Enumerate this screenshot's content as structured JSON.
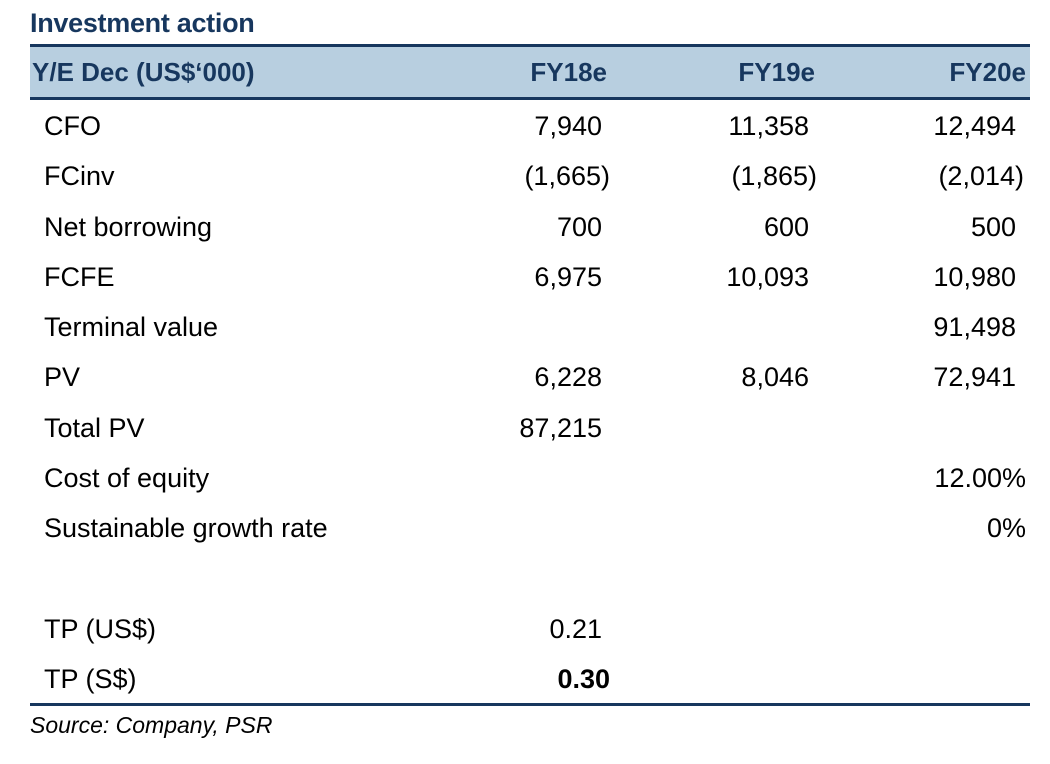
{
  "title": "Investment action",
  "header": {
    "label": "Y/E Dec (US$‘000)",
    "columns": [
      "FY18e",
      "FY19e",
      "FY20e"
    ]
  },
  "rows": [
    {
      "label": "CFO",
      "values": [
        "7,940",
        "11,358",
        "12,494"
      ]
    },
    {
      "label": "FCinv",
      "values": [
        "(1,665)",
        "(1,865)",
        "(2,014)"
      ]
    },
    {
      "label": "Net borrowing",
      "values": [
        "700",
        "600",
        "500"
      ]
    },
    {
      "label": "FCFE",
      "values": [
        "6,975",
        "10,093",
        "10,980"
      ]
    },
    {
      "label": "Terminal value",
      "values": [
        "",
        "",
        "91,498"
      ]
    },
    {
      "label": "PV",
      "values": [
        "6,228",
        "8,046",
        "72,941"
      ]
    },
    {
      "label": "Total PV",
      "values": [
        "87,215",
        "",
        ""
      ]
    },
    {
      "label": "Cost of equity",
      "values": [
        "",
        "",
        "12.00%"
      ]
    },
    {
      "label": "Sustainable growth rate",
      "values": [
        "",
        "",
        "0%"
      ]
    }
  ],
  "target_price_rows": [
    {
      "label": "TP (US$)",
      "value": "0.21"
    },
    {
      "label": "TP (S$)",
      "value": "0.30"
    }
  ],
  "source": "Source: Company, PSR",
  "colors": {
    "heading": "#17375e",
    "header_fill": "#b8cfe0"
  }
}
